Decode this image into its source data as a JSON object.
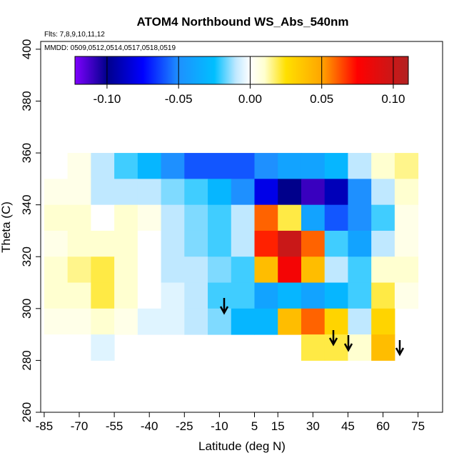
{
  "chart_data": {
    "type": "heatmap",
    "title": "ATOM4 Northbound WS_Abs_540nm",
    "subtitle": "Flts: 7,8,9,10,11,12",
    "annotation": "MMDD: 0509,0512,0514,0517,0518,0519",
    "x_label": "Latitude (deg N)",
    "y_label": "Theta (C)",
    "xlim": [
      -86.5,
      85.5
    ],
    "ylim": [
      260,
      403
    ],
    "xticks": [
      -85,
      -70,
      -55,
      -40,
      -25,
      -10,
      5,
      15,
      30,
      45,
      60,
      75
    ],
    "yticks": [
      260,
      280,
      300,
      320,
      340,
      360,
      380,
      400
    ],
    "clim": [
      -0.1224,
      0.1105
    ],
    "cticks": [
      {
        "value": -0.1,
        "label": "-0.10"
      },
      {
        "value": -0.05,
        "label": "-0.05"
      },
      {
        "value": 0,
        "label": "0.00"
      },
      0.05,
      {
        "value": 0.1,
        "label": "0.10"
      }
    ],
    "colorscale": [
      [
        -0.1224,
        "#7f00ff"
      ],
      [
        -0.1,
        "#00008b"
      ],
      [
        -0.075,
        "#0000ff"
      ],
      [
        -0.05,
        "#1e90ff"
      ],
      [
        -0.025,
        "#00bfff"
      ],
      [
        -0.01,
        "#bfe8ff"
      ],
      [
        0,
        "#ffffff"
      ],
      [
        0.01,
        "#ffffd0"
      ],
      [
        0.025,
        "#ffe000"
      ],
      [
        0.05,
        "#ffa500"
      ],
      [
        0.075,
        "#ff0000"
      ],
      [
        0.1105,
        "#b22222"
      ]
    ],
    "x": [
      -80,
      -70,
      -60,
      -50,
      -40,
      -30,
      -20,
      -10,
      0,
      10,
      20,
      30,
      40,
      50,
      60,
      70
    ],
    "y": [
      355,
      345,
      335,
      325,
      315,
      305,
      295,
      285
    ],
    "z": [
      [
        null,
        0.005,
        -0.01,
        -0.02,
        -0.03,
        -0.05,
        -0.06,
        -0.06,
        -0.06,
        -0.05,
        -0.04,
        -0.04,
        -0.03,
        -0.01,
        0.01,
        0.015
      ],
      [
        0.005,
        0.005,
        -0.01,
        -0.01,
        -0.01,
        -0.015,
        -0.02,
        -0.03,
        -0.05,
        -0.08,
        -0.1,
        -0.11,
        -0.09,
        -0.05,
        -0.01,
        0.01
      ],
      [
        0.01,
        0.01,
        0,
        0.01,
        0.005,
        -0.01,
        -0.015,
        -0.02,
        -0.01,
        0.06,
        0.02,
        -0.04,
        -0.06,
        -0.05,
        -0.02,
        0.005
      ],
      [
        0.005,
        0.01,
        0.01,
        0.01,
        0,
        -0.01,
        -0.015,
        -0.02,
        -0.01,
        0.07,
        0.1,
        0.06,
        -0.02,
        -0.04,
        -0.01,
        0.005
      ],
      [
        0.01,
        0.015,
        0.02,
        0.01,
        0,
        -0.01,
        -0.01,
        -0.015,
        -0.02,
        0.04,
        0.08,
        0.04,
        -0.01,
        -0.02,
        0.01,
        0.01
      ],
      [
        0.01,
        0.01,
        0.02,
        0.01,
        0,
        -0.005,
        -0.01,
        -0.02,
        -0.02,
        -0.04,
        -0.03,
        -0.04,
        -0.03,
        -0.02,
        0.02,
        0.005
      ],
      [
        0.005,
        0.005,
        0.01,
        0.005,
        -0.005,
        -0.005,
        -0.01,
        -0.015,
        -0.03,
        -0.03,
        0.04,
        0.06,
        0.03,
        -0.01,
        0.03,
        null
      ],
      [
        0,
        0,
        -0.005,
        null,
        null,
        null,
        null,
        null,
        null,
        null,
        null,
        0.02,
        0.02,
        0.01,
        0.04,
        null
      ]
    ]
  }
}
